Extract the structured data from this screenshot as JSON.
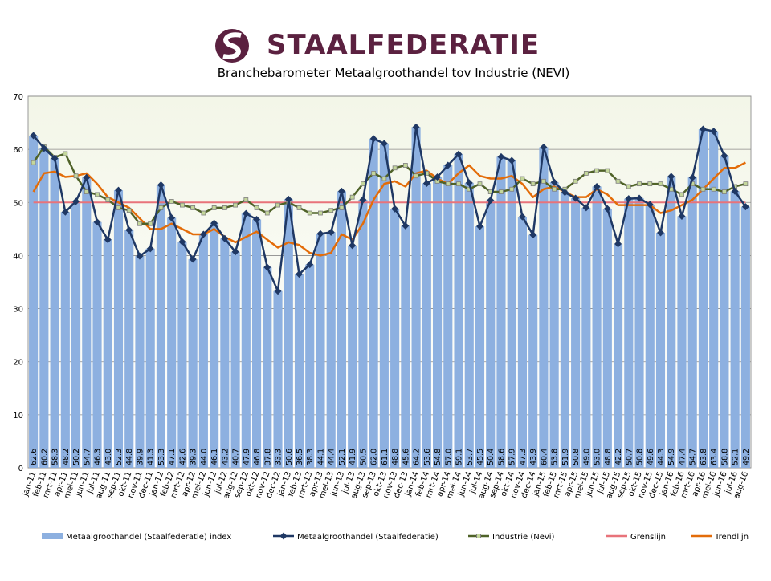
{
  "logo": "STAALFEDERATIE",
  "chart_data": {
    "type": "bar",
    "title": "Branchebarometer Metaalgroothandel tov Industrie (NEVI)",
    "categories": [
      "jan-11",
      "feb-11",
      "mrt-11",
      "apr-11",
      "mei-11",
      "jun-11",
      "jul-11",
      "aug-11",
      "sep-11",
      "okt-11",
      "nov-11",
      "dec-11",
      "jan-12",
      "feb-12",
      "mrt-12",
      "apr-12",
      "mei-12",
      "jun-12",
      "jul-12",
      "aug-12",
      "sep-12",
      "okt-12",
      "nov-12",
      "dec-12",
      "jan-13",
      "feb-13",
      "mrt-13",
      "apr-13",
      "mei-13",
      "jun-13",
      "jul-13",
      "aug-13",
      "sep-13",
      "okt-13",
      "nov-13",
      "dec-13",
      "jan-14",
      "feb-14",
      "mrt-14",
      "apr-14",
      "mei-14",
      "jun-14",
      "jul-14",
      "aug-14",
      "sep-14",
      "okt-14",
      "nov-14",
      "dec-14",
      "jan-15",
      "feb-15",
      "mrt-15",
      "apr-15",
      "mei-15",
      "jun-15",
      "jul-15",
      "aug-15",
      "sep-15",
      "okt-15",
      "nov-15",
      "dec-15",
      "jan-16",
      "feb-16",
      "mrt-16",
      "apr-16",
      "mei-16",
      "jun-16",
      "jul-16",
      "aug-16"
    ],
    "ylim": [
      0,
      70
    ],
    "yticks": [
      0,
      10,
      20,
      30,
      40,
      50,
      60,
      70
    ],
    "grid": true,
    "series": [
      {
        "name": "Metaalgroothandel (Staalfederatie) index",
        "type": "bar",
        "color": "#8db0e0",
        "values": [
          62.6,
          60.2,
          58.3,
          48.2,
          50.2,
          54.7,
          46.3,
          43.0,
          52.3,
          44.8,
          39.9,
          41.3,
          53.3,
          47.1,
          42.6,
          39.3,
          44.0,
          46.1,
          43.2,
          40.7,
          47.9,
          46.8,
          37.8,
          33.3,
          50.6,
          36.5,
          38.3,
          44.1,
          44.4,
          52.1,
          41.9,
          50.5,
          62.0,
          61.1,
          48.8,
          45.6,
          64.2,
          53.6,
          54.8,
          57.0,
          59.1,
          53.7,
          45.5,
          50.4,
          58.6,
          57.9,
          47.3,
          43.9,
          60.4,
          53.8,
          51.9,
          50.8,
          49.0,
          53.0,
          48.8,
          42.2,
          50.7,
          50.8,
          49.6,
          44.3,
          54.9,
          47.4,
          54.7,
          63.8,
          63.4,
          58.8,
          52.1,
          49.2
        ],
        "value_labels": [
          "62.6",
          "60.2",
          "58.3",
          "48.2",
          "50.2",
          "54.7",
          "46.3",
          "43.0",
          "52.3",
          "44.8",
          "39.9",
          "41.3",
          "53.3",
          "47.1",
          "42.6",
          "39.3",
          "44.0",
          "46.1",
          "43.2",
          "40.7",
          "47.9",
          "46.8",
          "37.8",
          "33.3",
          "50.6",
          "36.5",
          "38.3",
          "44.1",
          "44.4",
          "52.1",
          "41.9",
          "50.5",
          "62.0",
          "61.1",
          "48.8",
          "45.6",
          "64.2",
          "53.6",
          "54.8",
          "57.0",
          "59.1",
          "53.7",
          "45.5",
          "50.4",
          "58.6",
          "57.9",
          "47.3",
          "43.9",
          "60.4",
          "53.8",
          "51.9",
          "50.8",
          "49.0",
          "53.0",
          "48.8",
          "42.2",
          "50.7",
          "50.8",
          "49.6",
          "44.3",
          "54.9",
          "47.4",
          "54.7",
          "63.8",
          "63.4",
          "58.8",
          "52.1",
          "49.2"
        ]
      },
      {
        "name": "Metaalgroothandel (Staalfederatie)",
        "type": "line",
        "marker": "diamond",
        "color": "#1f3864",
        "values": [
          62.6,
          60.2,
          58.3,
          48.2,
          50.2,
          54.7,
          46.3,
          43.0,
          52.3,
          44.8,
          39.9,
          41.3,
          53.3,
          47.1,
          42.6,
          39.3,
          44.0,
          46.1,
          43.2,
          40.7,
          47.9,
          46.8,
          37.8,
          33.3,
          50.6,
          36.5,
          38.3,
          44.1,
          44.4,
          52.1,
          41.9,
          50.5,
          62.0,
          61.1,
          48.8,
          45.6,
          64.2,
          53.6,
          54.8,
          57.0,
          59.1,
          53.7,
          45.5,
          50.4,
          58.6,
          57.9,
          47.3,
          43.9,
          60.4,
          53.8,
          51.9,
          50.8,
          49.0,
          53.0,
          48.8,
          42.2,
          50.7,
          50.8,
          49.6,
          44.3,
          54.9,
          47.4,
          54.7,
          63.8,
          63.4,
          58.8,
          52.1,
          49.2
        ]
      },
      {
        "name": "Industrie (Nevi)",
        "type": "line",
        "marker": "square",
        "color": "#4f6228",
        "values": [
          57.5,
          60.5,
          58.5,
          59.2,
          55,
          52,
          51.5,
          50.5,
          49,
          48.5,
          46,
          46,
          49,
          50.2,
          49.5,
          49,
          48,
          49,
          49,
          49.5,
          50.5,
          49,
          48,
          49.5,
          50,
          49,
          48,
          48,
          48.5,
          49,
          51,
          53.5,
          55.5,
          54.5,
          56.5,
          57,
          55,
          55.5,
          54,
          53.5,
          53.5,
          52.5,
          53.5,
          52,
          52,
          52.5,
          54.5,
          53.5,
          54,
          52.5,
          52.5,
          54,
          55.5,
          56,
          56,
          54,
          53,
          53.5,
          53.5,
          53.5,
          52.5,
          51.5,
          53.5,
          52.5,
          52.5,
          52,
          53,
          53.5
        ]
      },
      {
        "name": "Grenslijn",
        "type": "line",
        "color": "#e8737a",
        "values": [
          50,
          50,
          50,
          50,
          50,
          50,
          50,
          50,
          50,
          50,
          50,
          50,
          50,
          50,
          50,
          50,
          50,
          50,
          50,
          50,
          50,
          50,
          50,
          50,
          50,
          50,
          50,
          50,
          50,
          50,
          50,
          50,
          50,
          50,
          50,
          50,
          50,
          50,
          50,
          50,
          50,
          50,
          50,
          50,
          50,
          50,
          50,
          50,
          50,
          50,
          50,
          50,
          50,
          50,
          50,
          50,
          50,
          50,
          50,
          50,
          50,
          50,
          50,
          50,
          50,
          50,
          50,
          50
        ]
      },
      {
        "name": "Trendlijn",
        "type": "line",
        "color": "#e36c09",
        "values": [
          52,
          55.5,
          55.8,
          54.8,
          55,
          55.5,
          53.5,
          51,
          50,
          49,
          47,
          45,
          45,
          46,
          45,
          44,
          44,
          45,
          43.5,
          42.5,
          43.5,
          44.5,
          43,
          41.5,
          42.5,
          42,
          40.5,
          40,
          40.5,
          44,
          43,
          46,
          50.5,
          53.5,
          54,
          53,
          55.5,
          56,
          54.5,
          53.5,
          55.5,
          57,
          55,
          54.5,
          54.5,
          55,
          53.5,
          51,
          52.5,
          53,
          52,
          51,
          51,
          52.5,
          51.5,
          49.5,
          49.5,
          49.5,
          49.5,
          48,
          48.5,
          49.5,
          50.5,
          52.5,
          54.5,
          56.5,
          56.5,
          57.5
        ]
      }
    ]
  }
}
